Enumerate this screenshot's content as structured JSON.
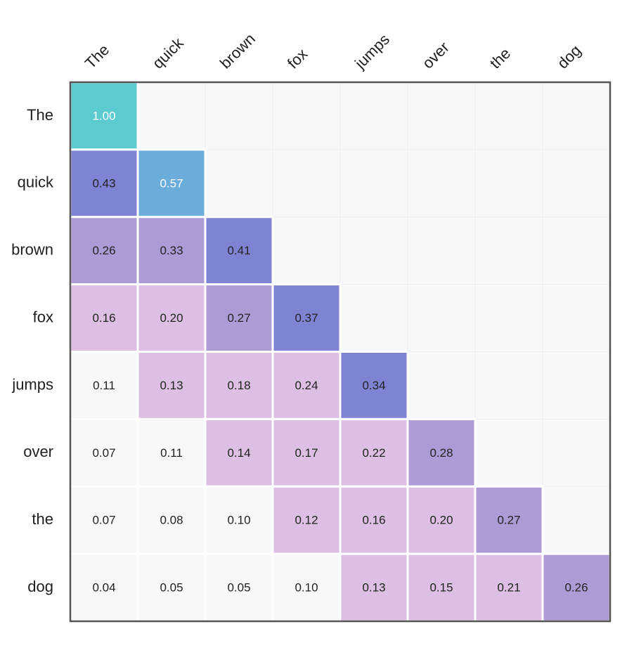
{
  "chart_data": {
    "type": "heatmap",
    "title": "",
    "rows": [
      "The",
      "quick",
      "brown",
      "fox",
      "jumps",
      "over",
      "the",
      "dog"
    ],
    "columns": [
      "The",
      "quick",
      "brown",
      "fox",
      "jumps",
      "over",
      "the",
      "dog"
    ],
    "values": [
      [
        1.0,
        null,
        null,
        null,
        null,
        null,
        null,
        null
      ],
      [
        0.43,
        0.57,
        null,
        null,
        null,
        null,
        null,
        null
      ],
      [
        0.26,
        0.33,
        0.41,
        null,
        null,
        null,
        null,
        null
      ],
      [
        0.16,
        0.2,
        0.27,
        0.37,
        null,
        null,
        null,
        null
      ],
      [
        0.11,
        0.13,
        0.18,
        0.24,
        0.34,
        null,
        null,
        null
      ],
      [
        0.07,
        0.11,
        0.14,
        0.17,
        0.22,
        0.28,
        null,
        null
      ],
      [
        0.07,
        0.08,
        0.1,
        0.12,
        0.16,
        0.2,
        0.27,
        null
      ],
      [
        0.04,
        0.05,
        0.05,
        0.1,
        0.13,
        0.15,
        0.21,
        0.26
      ]
    ],
    "value_labels": [
      [
        "1.00",
        "",
        "",
        "",
        "",
        "",
        "",
        ""
      ],
      [
        "0.43",
        "0.57",
        "",
        "",
        "",
        "",
        "",
        ""
      ],
      [
        "0.26",
        "0.33",
        "0.41",
        "",
        "",
        "",
        "",
        ""
      ],
      [
        "0.16",
        "0.20",
        "0.27",
        "0.37",
        "",
        "",
        "",
        ""
      ],
      [
        "0.11",
        "0.13",
        "0.18",
        "0.24",
        "0.34",
        "",
        "",
        ""
      ],
      [
        "0.07",
        "0.11",
        "0.14",
        "0.17",
        "0.22",
        "0.28",
        "",
        ""
      ],
      [
        "0.07",
        "0.08",
        "0.10",
        "0.12",
        "0.16",
        "0.20",
        "0.27",
        ""
      ],
      [
        "0.04",
        "0.05",
        "0.05",
        "0.10",
        "0.13",
        "0.15",
        "0.21",
        "0.26"
      ]
    ],
    "color_scale": [
      {
        "min": 0.0,
        "max": 0.12,
        "color": "#f7f8fa",
        "text_color": "#222222"
      },
      {
        "min": 0.12,
        "max": 0.25,
        "color": "#dcbfe3",
        "text_color": "#222222"
      },
      {
        "min": 0.25,
        "max": 0.34,
        "color": "#ad9bd6",
        "text_color": "#222222"
      },
      {
        "min": 0.34,
        "max": 0.5,
        "color": "#7f83d3",
        "text_color": "#222222"
      },
      {
        "min": 0.5,
        "max": 0.8,
        "color": "#6aaddb",
        "text_color": "#ffffff"
      },
      {
        "min": 0.8,
        "max": 1.01,
        "color": "#5ccbd0",
        "text_color": "#ffffff"
      }
    ],
    "empty_color": "#f7f8fa",
    "frame_color": "#555555",
    "grid": false,
    "xlabel": "",
    "ylabel": ""
  }
}
